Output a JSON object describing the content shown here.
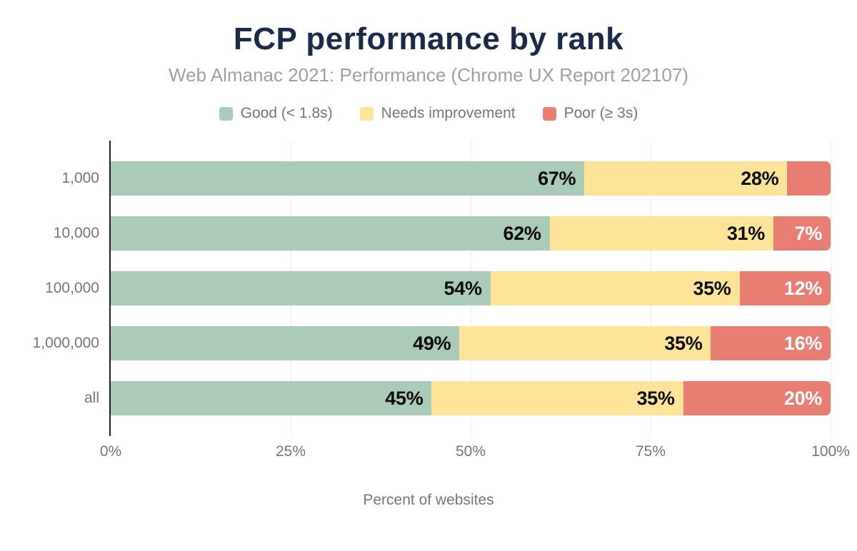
{
  "chart_data": {
    "type": "bar",
    "orientation": "horizontal",
    "stacked": true,
    "title": "FCP performance by rank",
    "subtitle": "Web Almanac 2021: Performance (Chrome UX Report 202107)",
    "xlabel": "Percent of websites",
    "categories": [
      "1,000",
      "10,000",
      "100,000",
      "1,000,000",
      "all"
    ],
    "series": [
      {
        "name": "Good (< 1.8s)",
        "color": "#a9cbb8",
        "label_color": "#0b0b0b",
        "values": [
          67,
          62,
          54,
          49,
          45
        ],
        "labels": [
          "67%",
          "62%",
          "54%",
          "49%",
          "45%"
        ]
      },
      {
        "name": "Needs improvement",
        "color": "#fde498",
        "label_color": "#0b0b0b",
        "values": [
          28,
          31,
          35,
          35,
          35
        ],
        "labels": [
          "28%",
          "31%",
          "35%",
          "35%",
          "35%"
        ]
      },
      {
        "name": "Poor (≥ 3s)",
        "color": "#e87d72",
        "label_color": "#ffffff",
        "values": [
          5,
          7,
          12,
          16,
          20
        ],
        "labels": [
          "",
          "7%",
          "12%",
          "16%",
          "20%"
        ]
      }
    ],
    "x_ticks": [
      "0%",
      "25%",
      "50%",
      "75%",
      "100%"
    ],
    "x_tick_positions": [
      0,
      25,
      50,
      75,
      100
    ],
    "xlim": [
      0,
      100
    ],
    "grid": "vertical",
    "legend_position": "top"
  },
  "colors": {
    "title": "#1a2b49",
    "subtitle": "#9aa0a6",
    "muted_text": "#757575",
    "axis": "#212121",
    "gridline": "#ececec"
  }
}
